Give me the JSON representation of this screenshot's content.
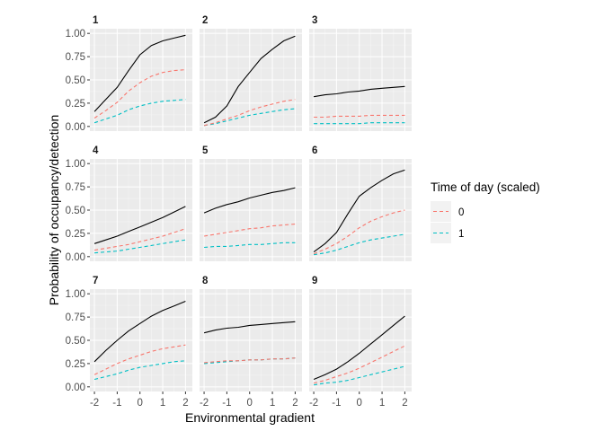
{
  "chart_data": {
    "type": "line",
    "xlabel": "Environmental gradient",
    "ylabel": "Probability of occupancy/detection",
    "xlim": [
      -2.2,
      2.3
    ],
    "ylim": [
      -0.05,
      1.05
    ],
    "xticks": [
      -2,
      -1,
      0,
      1,
      2
    ],
    "xtick_labels": [
      "-2",
      "-1",
      "0",
      "1",
      "2"
    ],
    "yticks": [
      0,
      0.25,
      0.5,
      0.75,
      1
    ],
    "ytick_labels": [
      "0.00",
      "0.25",
      "0.50",
      "0.75",
      "1.00"
    ],
    "grid": true,
    "legend": {
      "title": "Time of day (scaled)",
      "position": "right",
      "entries": [
        {
          "label": "0",
          "color": "#f8766d"
        },
        {
          "label": "1",
          "color": "#00bfc4"
        }
      ]
    },
    "x": [
      -2,
      -1.5,
      -1,
      -0.5,
      0,
      0.5,
      1,
      1.5,
      2
    ],
    "series_styles": {
      "occupancy": {
        "color": "#000000",
        "dash": "none"
      },
      "0": {
        "color": "#f8766d",
        "dash": "4,3"
      },
      "1": {
        "color": "#00bfc4",
        "dash": "4,3"
      }
    },
    "panels": [
      {
        "label": "1",
        "occupancy": [
          0.16,
          0.29,
          0.42,
          0.6,
          0.77,
          0.87,
          0.92,
          0.95,
          0.98
        ],
        "det0": [
          0.09,
          0.17,
          0.26,
          0.38,
          0.47,
          0.54,
          0.58,
          0.6,
          0.61
        ],
        "det1": [
          0.04,
          0.08,
          0.12,
          0.18,
          0.22,
          0.25,
          0.27,
          0.28,
          0.29
        ]
      },
      {
        "label": "2",
        "occupancy": [
          0.04,
          0.1,
          0.22,
          0.43,
          0.58,
          0.73,
          0.83,
          0.92,
          0.97
        ],
        "det0": [
          0.01,
          0.04,
          0.08,
          0.12,
          0.17,
          0.21,
          0.24,
          0.27,
          0.29
        ],
        "det1": [
          0.01,
          0.03,
          0.06,
          0.09,
          0.12,
          0.14,
          0.16,
          0.18,
          0.19
        ]
      },
      {
        "label": "3",
        "occupancy": [
          0.32,
          0.34,
          0.35,
          0.37,
          0.38,
          0.4,
          0.41,
          0.42,
          0.43
        ],
        "det0": [
          0.1,
          0.1,
          0.11,
          0.11,
          0.11,
          0.12,
          0.12,
          0.12,
          0.12
        ],
        "det1": [
          0.03,
          0.03,
          0.03,
          0.03,
          0.03,
          0.04,
          0.04,
          0.04,
          0.04
        ]
      },
      {
        "label": "4",
        "occupancy": [
          0.14,
          0.18,
          0.22,
          0.27,
          0.32,
          0.37,
          0.42,
          0.48,
          0.54
        ],
        "det0": [
          0.07,
          0.09,
          0.11,
          0.13,
          0.16,
          0.19,
          0.22,
          0.26,
          0.3
        ],
        "det1": [
          0.04,
          0.05,
          0.06,
          0.08,
          0.1,
          0.12,
          0.14,
          0.16,
          0.18
        ]
      },
      {
        "label": "5",
        "occupancy": [
          0.47,
          0.52,
          0.56,
          0.59,
          0.63,
          0.66,
          0.69,
          0.71,
          0.74
        ],
        "det0": [
          0.22,
          0.24,
          0.26,
          0.28,
          0.3,
          0.31,
          0.33,
          0.34,
          0.35
        ],
        "det1": [
          0.1,
          0.11,
          0.11,
          0.12,
          0.13,
          0.13,
          0.14,
          0.15,
          0.15
        ]
      },
      {
        "label": "6",
        "occupancy": [
          0.05,
          0.14,
          0.26,
          0.46,
          0.65,
          0.74,
          0.82,
          0.89,
          0.93
        ],
        "det0": [
          0.03,
          0.08,
          0.14,
          0.22,
          0.31,
          0.38,
          0.43,
          0.47,
          0.5
        ],
        "det1": [
          0.02,
          0.04,
          0.07,
          0.11,
          0.15,
          0.18,
          0.2,
          0.22,
          0.24
        ]
      },
      {
        "label": "7",
        "occupancy": [
          0.27,
          0.39,
          0.5,
          0.6,
          0.68,
          0.76,
          0.82,
          0.87,
          0.92
        ],
        "det0": [
          0.13,
          0.19,
          0.25,
          0.3,
          0.34,
          0.38,
          0.41,
          0.43,
          0.45
        ],
        "det1": [
          0.08,
          0.11,
          0.14,
          0.18,
          0.21,
          0.23,
          0.25,
          0.27,
          0.28
        ]
      },
      {
        "label": "8",
        "occupancy": [
          0.58,
          0.61,
          0.63,
          0.64,
          0.66,
          0.67,
          0.68,
          0.69,
          0.7
        ],
        "det0": [
          0.26,
          0.27,
          0.28,
          0.28,
          0.29,
          0.29,
          0.3,
          0.3,
          0.31
        ],
        "det1": [
          0.25,
          0.26,
          0.27,
          0.28,
          0.29,
          0.29,
          0.3,
          0.3,
          0.31
        ]
      },
      {
        "label": "9",
        "occupancy": [
          0.08,
          0.13,
          0.19,
          0.27,
          0.36,
          0.46,
          0.56,
          0.66,
          0.76
        ],
        "det0": [
          0.04,
          0.07,
          0.11,
          0.15,
          0.2,
          0.26,
          0.32,
          0.38,
          0.44
        ],
        "det1": [
          0.02,
          0.04,
          0.05,
          0.07,
          0.1,
          0.13,
          0.16,
          0.19,
          0.22
        ]
      }
    ]
  }
}
